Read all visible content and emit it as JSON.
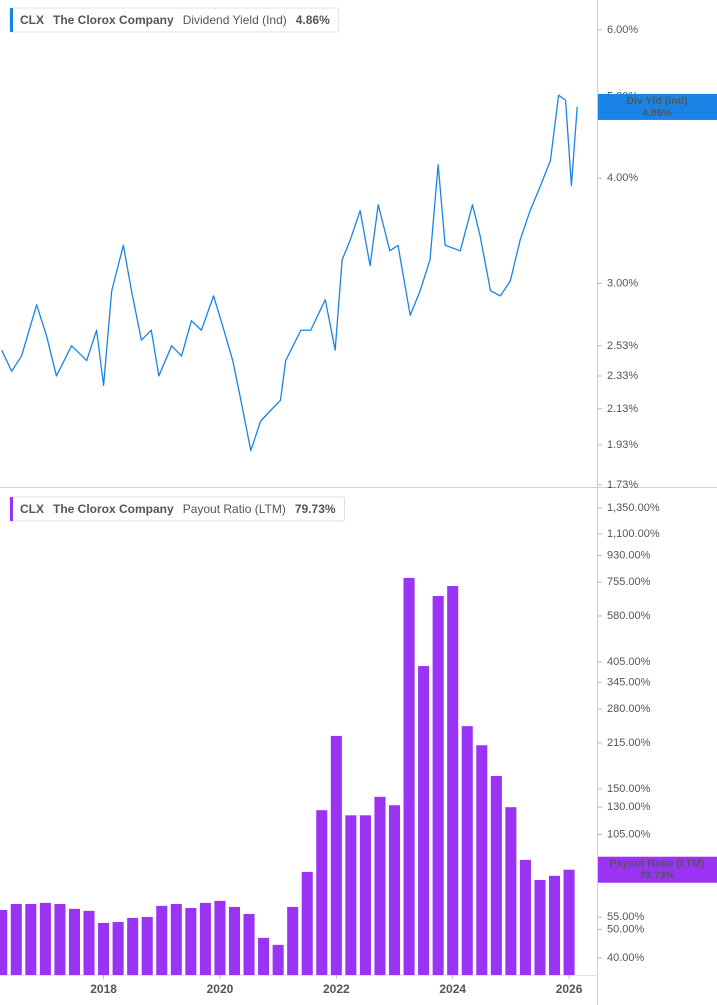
{
  "chart_data": [
    {
      "type": "line",
      "ticker": "CLX",
      "company": "The Clorox Company",
      "log_scale": true,
      "xlim": [
        2016.22,
        2026.48
      ],
      "ylim": [
        1.72,
        6.51
      ],
      "yticks": [
        {
          "value": 6,
          "label": "6.00%"
        },
        {
          "value": 5,
          "label": "5.00%"
        },
        {
          "value": 4,
          "label": "4.00%"
        },
        {
          "value": 3,
          "label": "3.00%"
        },
        {
          "value": 2.53,
          "label": "2.53%"
        },
        {
          "value": 2.33,
          "label": "2.33%"
        },
        {
          "value": 2.13,
          "label": "2.13%"
        },
        {
          "value": 1.93,
          "label": "1.93%"
        },
        {
          "value": 1.73,
          "label": "1.73%"
        }
      ],
      "x": [
        2016.25,
        2016.42,
        2016.59,
        2016.85,
        2017.02,
        2017.19,
        2017.45,
        2017.71,
        2017.88,
        2018.0,
        2018.14,
        2018.34,
        2018.48,
        2018.65,
        2018.82,
        2018.95,
        2019.17,
        2019.34,
        2019.51,
        2019.68,
        2019.89,
        2020.02,
        2020.22,
        2020.36,
        2020.53,
        2020.7,
        2020.87,
        2021.04,
        2021.13,
        2021.39,
        2021.56,
        2021.81,
        2021.98,
        2022.1,
        2022.24,
        2022.41,
        2022.58,
        2022.72,
        2022.92,
        2023.06,
        2023.27,
        2023.44,
        2023.61,
        2023.75,
        2023.87,
        2024.13,
        2024.34,
        2024.47,
        2024.65,
        2024.82,
        2024.99,
        2025.16,
        2025.33,
        2025.51,
        2025.68,
        2025.82,
        2025.94,
        2026.04,
        2026.14
      ],
      "series": [
        {
          "name": "Dividend Yield (Ind)",
          "short_name": "Div Yld (Ind)",
          "current_label": "4.86%",
          "color": "#1a84e6",
          "values": [
            2.5,
            2.36,
            2.46,
            2.83,
            2.6,
            2.33,
            2.53,
            2.43,
            2.64,
            2.27,
            2.94,
            3.33,
            2.94,
            2.57,
            2.64,
            2.33,
            2.53,
            2.46,
            2.71,
            2.64,
            2.9,
            2.71,
            2.43,
            2.18,
            1.9,
            2.06,
            2.12,
            2.18,
            2.43,
            2.64,
            2.64,
            2.87,
            2.5,
            3.2,
            3.38,
            3.66,
            3.15,
            3.72,
            3.28,
            3.33,
            2.75,
            2.94,
            3.2,
            4.15,
            3.33,
            3.28,
            3.72,
            3.42,
            2.94,
            2.9,
            3.02,
            3.38,
            3.66,
            3.92,
            4.2,
            5.02,
            4.95,
            3.92,
            4.86
          ]
        }
      ]
    },
    {
      "type": "bar",
      "ticker": "CLX",
      "company": "The Clorox Company",
      "log_scale": true,
      "xlim": [
        2016.22,
        2026.48
      ],
      "ylim": [
        35,
        1553
      ],
      "xticks": [
        2018,
        2020,
        2022,
        2024,
        2026
      ],
      "yticks": [
        {
          "value": 1350,
          "label": "1,350.00%"
        },
        {
          "value": 1100,
          "label": "1,100.00%"
        },
        {
          "value": 930,
          "label": "930.00%"
        },
        {
          "value": 755,
          "label": "755.00%"
        },
        {
          "value": 580,
          "label": "580.00%"
        },
        {
          "value": 405,
          "label": "405.00%"
        },
        {
          "value": 345,
          "label": "345.00%"
        },
        {
          "value": 280,
          "label": "280.00%"
        },
        {
          "value": 215,
          "label": "215.00%"
        },
        {
          "value": 150,
          "label": "150.00%"
        },
        {
          "value": 130,
          "label": "130.00%"
        },
        {
          "value": 105,
          "label": "105.00%"
        },
        {
          "value": 55,
          "label": "55.00%"
        },
        {
          "value": 50,
          "label": "50.00%"
        },
        {
          "value": 40,
          "label": "40.00%"
        }
      ],
      "x": [
        2016.25,
        2016.5,
        2016.75,
        2017.0,
        2017.25,
        2017.5,
        2017.75,
        2018.0,
        2018.25,
        2018.5,
        2018.75,
        2019.0,
        2019.25,
        2019.5,
        2019.75,
        2020.0,
        2020.25,
        2020.5,
        2020.75,
        2021.0,
        2021.25,
        2021.5,
        2021.75,
        2022.0,
        2022.25,
        2022.5,
        2022.75,
        2023.0,
        2023.25,
        2023.5,
        2023.75,
        2024.0,
        2024.25,
        2024.5,
        2024.75,
        2025.0,
        2025.25,
        2025.5,
        2025.75,
        2026.0
      ],
      "series": [
        {
          "name": "Payout Ratio (LTM)",
          "current_label": "79.73%",
          "color": "#9b33f5",
          "values": [
            58.2,
            61.0,
            61.0,
            61.5,
            61.0,
            58.7,
            57.8,
            52.6,
            53.0,
            54.7,
            55.1,
            60.1,
            61.0,
            59.1,
            61.5,
            62.5,
            59.6,
            56.4,
            46.8,
            44.3,
            59.6,
            78.4,
            127,
            227,
            122,
            122,
            141,
            132,
            781,
            392,
            678,
            733,
            245,
            211,
            166,
            130,
            86.1,
            73.6,
            76.0,
            79.73
          ]
        }
      ]
    }
  ]
}
